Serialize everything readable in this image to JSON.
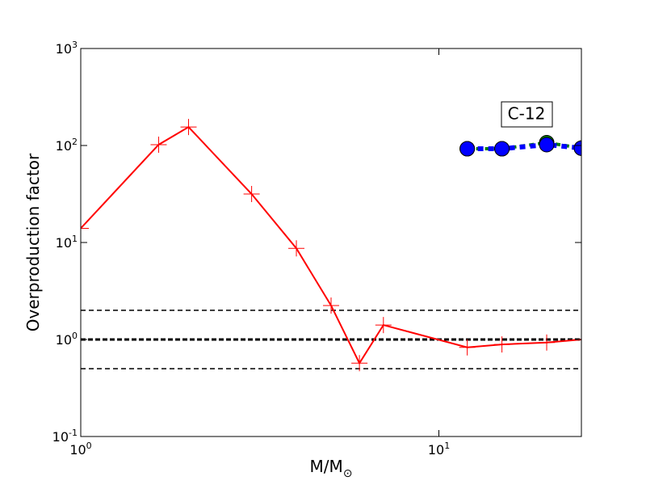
{
  "chart_data": {
    "type": "line",
    "xlabel": "M/M",
    "xlabel_sub": "⊙",
    "ylabel": "Overproduction factor",
    "annotation": "C-12",
    "xscale": "log",
    "yscale": "log",
    "xlim": [
      1,
      25
    ],
    "ylim": [
      0.1,
      1000
    ],
    "xticks": [
      {
        "value": 1,
        "label": "10",
        "sup": "0"
      },
      {
        "value": 10,
        "label": "10",
        "sup": "1"
      }
    ],
    "yticks": [
      {
        "value": 0.1,
        "label": "10",
        "sup": "-1"
      },
      {
        "value": 1,
        "label": "10",
        "sup": "0"
      },
      {
        "value": 10,
        "label": "10",
        "sup": "1"
      },
      {
        "value": 100,
        "label": "10",
        "sup": "2"
      },
      {
        "value": 1000,
        "label": "10",
        "sup": "3"
      }
    ],
    "hlines": [
      2,
      1,
      0.5
    ],
    "hline_styles": [
      "thin",
      "thick",
      "thin"
    ],
    "hline_color": "#000000",
    "series": [
      {
        "color": "#ff0000",
        "marker": "plus",
        "linestyle": "solid",
        "x": [
          1,
          1.65,
          2,
          3,
          4,
          5,
          6,
          7,
          12,
          15,
          20,
          25
        ],
        "values": [
          14,
          102,
          155,
          31.6,
          8.7,
          2.24,
          0.57,
          1.41,
          0.83,
          0.89,
          0.93,
          1.0
        ]
      },
      {
        "color": "#008000",
        "marker": "circle",
        "linestyle": "dashed",
        "x": [
          12,
          15,
          20,
          25
        ],
        "values": [
          92.6,
          92.6,
          107,
          94
        ]
      },
      {
        "color": "#0000ff",
        "marker": "circle",
        "linestyle": "dashed-thick",
        "x": [
          12,
          15,
          20,
          25
        ],
        "values": [
          92.6,
          92.6,
          102,
          94
        ]
      }
    ]
  }
}
